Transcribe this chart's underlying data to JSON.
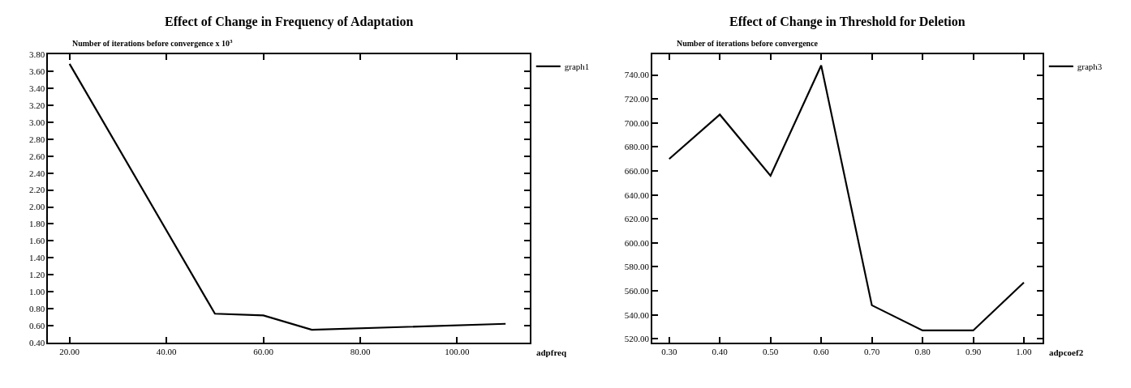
{
  "chart_data": [
    {
      "type": "line",
      "title": "Effect of Change in Frequency of Adaptation",
      "ylabel": "Number of iterations before convergence x 10$^{3}$",
      "xlabel": "adpfreq",
      "x": [
        20,
        50,
        60,
        70,
        110
      ],
      "series": [
        {
          "name": "graph1",
          "color": "#000000",
          "values": [
            3.69,
            0.74,
            0.72,
            0.55,
            0.62
          ]
        }
      ],
      "xlim": [
        15.6,
        115
      ],
      "xticks": [
        {
          "value": 20,
          "label": "20.00"
        },
        {
          "value": 40,
          "label": "40.00"
        },
        {
          "value": 60,
          "label": "60.00"
        },
        {
          "value": 80,
          "label": "80.00"
        },
        {
          "value": 100,
          "label": "100.00"
        }
      ],
      "ylim": [
        0.4,
        3.8
      ],
      "yticks": [
        {
          "value": 0.4,
          "label": "0.40"
        },
        {
          "value": 0.6,
          "label": "0.60"
        },
        {
          "value": 0.8,
          "label": "0.80"
        },
        {
          "value": 1.0,
          "label": "1.00"
        },
        {
          "value": 1.2,
          "label": "1.20"
        },
        {
          "value": 1.4,
          "label": "1.40"
        },
        {
          "value": 1.6,
          "label": "1.60"
        },
        {
          "value": 1.8,
          "label": "1.80"
        },
        {
          "value": 2.0,
          "label": "2.00"
        },
        {
          "value": 2.2,
          "label": "2.20"
        },
        {
          "value": 2.4,
          "label": "2.40"
        },
        {
          "value": 2.6,
          "label": "2.60"
        },
        {
          "value": 2.8,
          "label": "2.80"
        },
        {
          "value": 3.0,
          "label": "3.00"
        },
        {
          "value": 3.2,
          "label": "3.20"
        },
        {
          "value": 3.4,
          "label": "3.40"
        },
        {
          "value": 3.6,
          "label": "3.60"
        },
        {
          "value": 3.8,
          "label": "3.80"
        }
      ],
      "grid": false,
      "legend": "top right",
      "marker": "none",
      "line_style": "solid"
    },
    {
      "type": "line",
      "title": "Effect of Change in Threshold for Deletion",
      "ylabel": "Number of iterations before convergence",
      "xlabel": "adpcoef2",
      "x": [
        0.3,
        0.4,
        0.5,
        0.6,
        0.7,
        0.8,
        0.9,
        1.0
      ],
      "series": [
        {
          "name": "graph3",
          "color": "#000000",
          "values": [
            670,
            707,
            656,
            748,
            548,
            527,
            527,
            567
          ]
        }
      ],
      "xlim": [
        0.267,
        1.037
      ],
      "xticks": [
        {
          "value": 0.3,
          "label": "0.30"
        },
        {
          "value": 0.4,
          "label": "0.40"
        },
        {
          "value": 0.5,
          "label": "0.50"
        },
        {
          "value": 0.6,
          "label": "0.60"
        },
        {
          "value": 0.7,
          "label": "0.70"
        },
        {
          "value": 0.8,
          "label": "0.80"
        },
        {
          "value": 0.9,
          "label": "0.90"
        },
        {
          "value": 1.0,
          "label": "1.00"
        }
      ],
      "ylim": [
        517,
        757
      ],
      "yticks": [
        {
          "value": 520,
          "label": "520.00"
        },
        {
          "value": 540,
          "label": "540.00"
        },
        {
          "value": 560,
          "label": "560.00"
        },
        {
          "value": 580,
          "label": "580.00"
        },
        {
          "value": 600,
          "label": "600.00"
        },
        {
          "value": 620,
          "label": "620.00"
        },
        {
          "value": 640,
          "label": "640.00"
        },
        {
          "value": 660,
          "label": "660.00"
        },
        {
          "value": 680,
          "label": "680.00"
        },
        {
          "value": 700,
          "label": "700.00"
        },
        {
          "value": 720,
          "label": "720.00"
        },
        {
          "value": 740,
          "label": "740.00"
        }
      ],
      "grid": false,
      "legend": "top right",
      "marker": "none",
      "line_style": "solid"
    }
  ]
}
